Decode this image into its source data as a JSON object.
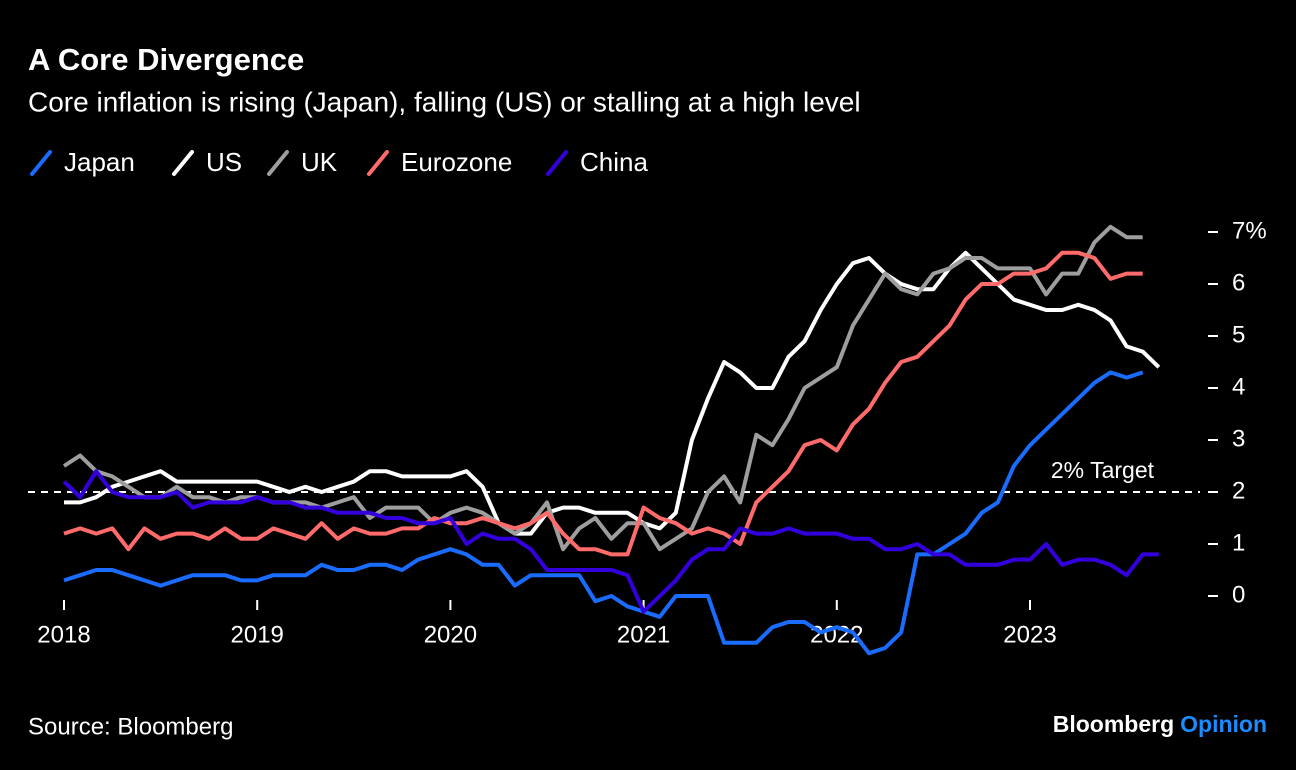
{
  "chart_data": {
    "type": "line",
    "title": "A Core Divergence",
    "subtitle": "Core inflation is rising (Japan), falling (US) or stalling at a high level",
    "categories": [
      "2018",
      null,
      null,
      null,
      null,
      null,
      null,
      null,
      null,
      null,
      null,
      null,
      "2019",
      null,
      null,
      null,
      null,
      null,
      null,
      null,
      null,
      null,
      null,
      null,
      "2020",
      null,
      null,
      null,
      null,
      null,
      null,
      null,
      null,
      null,
      null,
      null,
      "2021",
      null,
      null,
      null,
      null,
      null,
      null,
      null,
      null,
      null,
      null,
      null,
      "2022",
      null,
      null,
      null,
      null,
      null,
      null,
      null,
      null,
      null,
      null,
      null,
      "2023",
      null,
      null,
      null,
      null,
      null,
      null,
      null,
      null
    ],
    "series": [
      {
        "name": "Japan",
        "color": "#1a6cff",
        "values": [
          0.3,
          0.4,
          0.5,
          0.5,
          0.4,
          0.3,
          0.2,
          0.3,
          0.4,
          0.4,
          0.4,
          0.3,
          0.3,
          0.4,
          0.4,
          0.4,
          0.6,
          0.5,
          0.5,
          0.6,
          0.6,
          0.5,
          0.7,
          0.8,
          0.9,
          0.8,
          0.6,
          0.6,
          0.2,
          0.4,
          0.4,
          0.4,
          0.4,
          -0.1,
          0,
          -0.2,
          -0.3,
          -0.4,
          0,
          0,
          0,
          -0.9,
          -0.9,
          -0.9,
          -0.6,
          -0.5,
          -0.5,
          -0.7,
          -0.6,
          -0.7,
          -1.1,
          -1.0,
          -0.7,
          0.8,
          0.8,
          1.0,
          1.2,
          1.6,
          1.8,
          2.5,
          2.9,
          3.2,
          3.5,
          3.8,
          4.1,
          4.3,
          4.2,
          4.3,
          null
        ]
      },
      {
        "name": "US",
        "color": "#ffffff",
        "values": [
          1.8,
          1.8,
          1.9,
          2.1,
          2.2,
          2.3,
          2.4,
          2.2,
          2.2,
          2.2,
          2.2,
          2.2,
          2.2,
          2.1,
          2.0,
          2.1,
          2.0,
          2.1,
          2.2,
          2.4,
          2.4,
          2.3,
          2.3,
          2.3,
          2.3,
          2.4,
          2.1,
          1.4,
          1.2,
          1.2,
          1.6,
          1.7,
          1.7,
          1.6,
          1.6,
          1.6,
          1.4,
          1.3,
          1.6,
          3.0,
          3.8,
          4.5,
          4.3,
          4.0,
          4.0,
          4.6,
          4.9,
          5.5,
          6.0,
          6.4,
          6.5,
          6.2,
          6.0,
          5.9,
          5.9,
          6.3,
          6.6,
          6.3,
          6.0,
          5.7,
          5.6,
          5.5,
          5.5,
          5.6,
          5.5,
          5.3,
          4.8,
          4.7,
          4.4
        ]
      },
      {
        "name": "UK",
        "color": "#9e9e9e",
        "values": [
          2.5,
          2.7,
          2.4,
          2.3,
          2.1,
          1.9,
          1.9,
          2.1,
          1.9,
          1.9,
          1.8,
          1.9,
          1.9,
          1.8,
          1.8,
          1.8,
          1.7,
          1.8,
          1.9,
          1.5,
          1.7,
          1.7,
          1.7,
          1.4,
          1.6,
          1.7,
          1.6,
          1.4,
          1.2,
          1.4,
          1.8,
          0.9,
          1.3,
          1.5,
          1.1,
          1.4,
          1.4,
          0.9,
          1.1,
          1.3,
          2.0,
          2.3,
          1.8,
          3.1,
          2.9,
          3.4,
          4.0,
          4.2,
          4.4,
          5.2,
          5.7,
          6.2,
          5.9,
          5.8,
          6.2,
          6.3,
          6.5,
          6.5,
          6.3,
          6.3,
          6.3,
          5.8,
          6.2,
          6.2,
          6.8,
          7.1,
          6.9,
          6.9,
          null
        ]
      },
      {
        "name": "Eurozone",
        "color": "#ff6b6b",
        "values": [
          1.2,
          1.3,
          1.2,
          1.3,
          0.9,
          1.3,
          1.1,
          1.2,
          1.2,
          1.1,
          1.3,
          1.1,
          1.1,
          1.3,
          1.2,
          1.1,
          1.4,
          1.1,
          1.3,
          1.2,
          1.2,
          1.3,
          1.3,
          1.5,
          1.4,
          1.4,
          1.5,
          1.4,
          1.3,
          1.4,
          1.6,
          1.2,
          0.9,
          0.9,
          0.8,
          0.8,
          1.7,
          1.5,
          1.4,
          1.2,
          1.3,
          1.2,
          1.0,
          1.8,
          2.1,
          2.4,
          2.9,
          3.0,
          2.8,
          3.3,
          3.6,
          4.1,
          4.5,
          4.6,
          4.9,
          5.2,
          5.7,
          6.0,
          6.0,
          6.2,
          6.2,
          6.3,
          6.6,
          6.6,
          6.5,
          6.1,
          6.2,
          6.2,
          null
        ]
      },
      {
        "name": "China",
        "color": "#3300dd",
        "values": [
          2.2,
          1.9,
          2.4,
          2.0,
          1.9,
          1.9,
          1.9,
          2.0,
          1.7,
          1.8,
          1.8,
          1.8,
          1.9,
          1.8,
          1.8,
          1.7,
          1.7,
          1.6,
          1.6,
          1.6,
          1.5,
          1.5,
          1.4,
          1.4,
          1.5,
          1.0,
          1.2,
          1.1,
          1.1,
          0.9,
          0.5,
          0.5,
          0.5,
          0.5,
          0.5,
          0.4,
          -0.3,
          0,
          0.3,
          0.7,
          0.9,
          0.9,
          1.3,
          1.2,
          1.2,
          1.3,
          1.2,
          1.2,
          1.2,
          1.1,
          1.1,
          0.9,
          0.9,
          1.0,
          0.8,
          0.8,
          0.6,
          0.6,
          0.6,
          0.7,
          0.7,
          1.0,
          0.6,
          0.7,
          0.7,
          0.6,
          0.4,
          0.8,
          0.8
        ]
      }
    ],
    "ylim": [
      -1.2,
      7.2
    ],
    "yticks": [
      0,
      1,
      2,
      3,
      4,
      5,
      6,
      {
        "value": 7,
        "label": "7%"
      }
    ],
    "target": {
      "value": 2,
      "label": "2% Target"
    },
    "source": "Source: Bloomberg",
    "logo": {
      "name": "Bloomberg",
      "suffix": "Opinion"
    }
  }
}
